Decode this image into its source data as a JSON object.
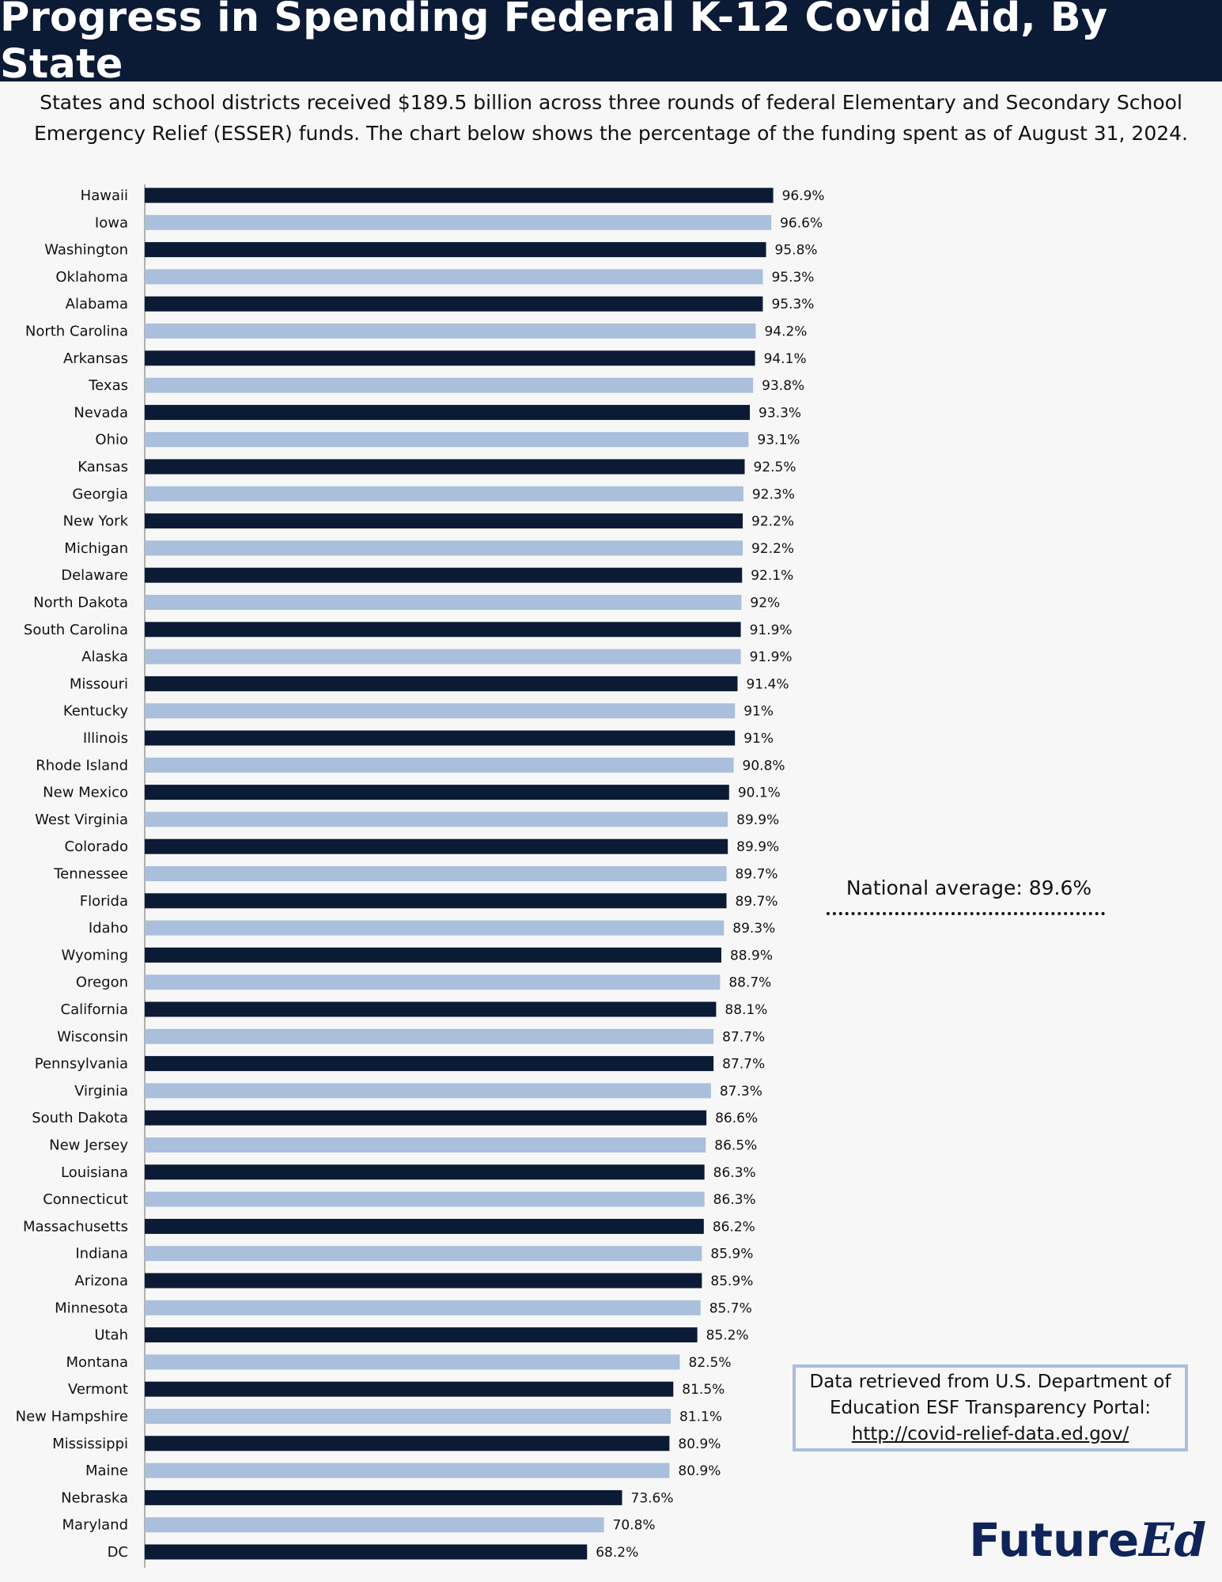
{
  "title": "Progress in Spending Federal K-12 Covid Aid, By State",
  "subtitle_line1": "States and school districts received $189.5 billion across three rounds of federal Elementary and Secondary School",
  "subtitle_line2": "Emergency Relief (ESSER) funds. The chart below shows the percentage of the funding spent as of August 31, 2024.",
  "national_average_label": "National average: 89.6%",
  "source": {
    "line1": "Data retrieved from U.S. Department of",
    "line2": "Education ESF Transparency Portal:",
    "link": "http://covid-relief-data.ed.gov/"
  },
  "logo": {
    "part1": "Future",
    "part2": "Ed"
  },
  "colors": {
    "dark": "#0b1a35",
    "light": "#a9bfdb",
    "axis": "#999999"
  },
  "chart_data": {
    "type": "bar",
    "orientation": "horizontal",
    "value_suffix": "%",
    "xlim": [
      0,
      100
    ],
    "reference_line": {
      "label": "National average: 89.6%",
      "value": 89.6
    },
    "categories": [
      "Hawaii",
      "Iowa",
      "Washington",
      "Oklahoma",
      "Alabama",
      "North Carolina",
      "Arkansas",
      "Texas",
      "Nevada",
      "Ohio",
      "Kansas",
      "Georgia",
      "New York",
      "Michigan",
      "Delaware",
      "North Dakota",
      "South Carolina",
      "Alaska",
      "Missouri",
      "Kentucky",
      "Illinois",
      "Rhode Island",
      "New Mexico",
      "West Virginia",
      "Colorado",
      "Tennessee",
      "Florida",
      "Idaho",
      "Wyoming",
      "Oregon",
      "California",
      "Wisconsin",
      "Pennsylvania",
      "Virginia",
      "South Dakota",
      "New Jersey",
      "Louisiana",
      "Connecticut",
      "Massachusetts",
      "Indiana",
      "Arizona",
      "Minnesota",
      "Utah",
      "Montana",
      "Vermont",
      "New Hampshire",
      "Mississippi",
      "Maine",
      "Nebraska",
      "Maryland",
      "DC"
    ],
    "values": [
      96.9,
      96.6,
      95.8,
      95.3,
      95.3,
      94.2,
      94.1,
      93.8,
      93.3,
      93.1,
      92.5,
      92.3,
      92.2,
      92.2,
      92.1,
      92,
      91.9,
      91.9,
      91.4,
      91,
      91,
      90.8,
      90.1,
      89.9,
      89.9,
      89.7,
      89.7,
      89.3,
      88.9,
      88.7,
      88.1,
      87.7,
      87.7,
      87.3,
      86.6,
      86.5,
      86.3,
      86.3,
      86.2,
      85.9,
      85.9,
      85.7,
      85.2,
      82.5,
      81.5,
      81.1,
      80.9,
      80.9,
      73.6,
      70.8,
      68.2
    ],
    "labels": [
      "96.9%",
      "96.6%",
      "95.8%",
      "95.3%",
      "95.3%",
      "94.2%",
      "94.1%",
      "93.8%",
      "93.3%",
      "93.1%",
      "92.5%",
      "92.3%",
      "92.2%",
      "92.2%",
      "92.1%",
      "92%",
      "91.9%",
      "91.9%",
      "91.4%",
      "91%",
      "91%",
      "90.8%",
      "90.1%",
      "89.9%",
      "89.9%",
      "89.7%",
      "89.7%",
      "89.3%",
      "88.9%",
      "88.7%",
      "88.1%",
      "87.7%",
      "87.7%",
      "87.3%",
      "86.6%",
      "86.5%",
      "86.3%",
      "86.3%",
      "86.2%",
      "85.9%",
      "85.9%",
      "85.7%",
      "85.2%",
      "82.5%",
      "81.5%",
      "81.1%",
      "80.9%",
      "80.9%",
      "73.6%",
      "70.8%",
      "68.2%"
    ]
  }
}
